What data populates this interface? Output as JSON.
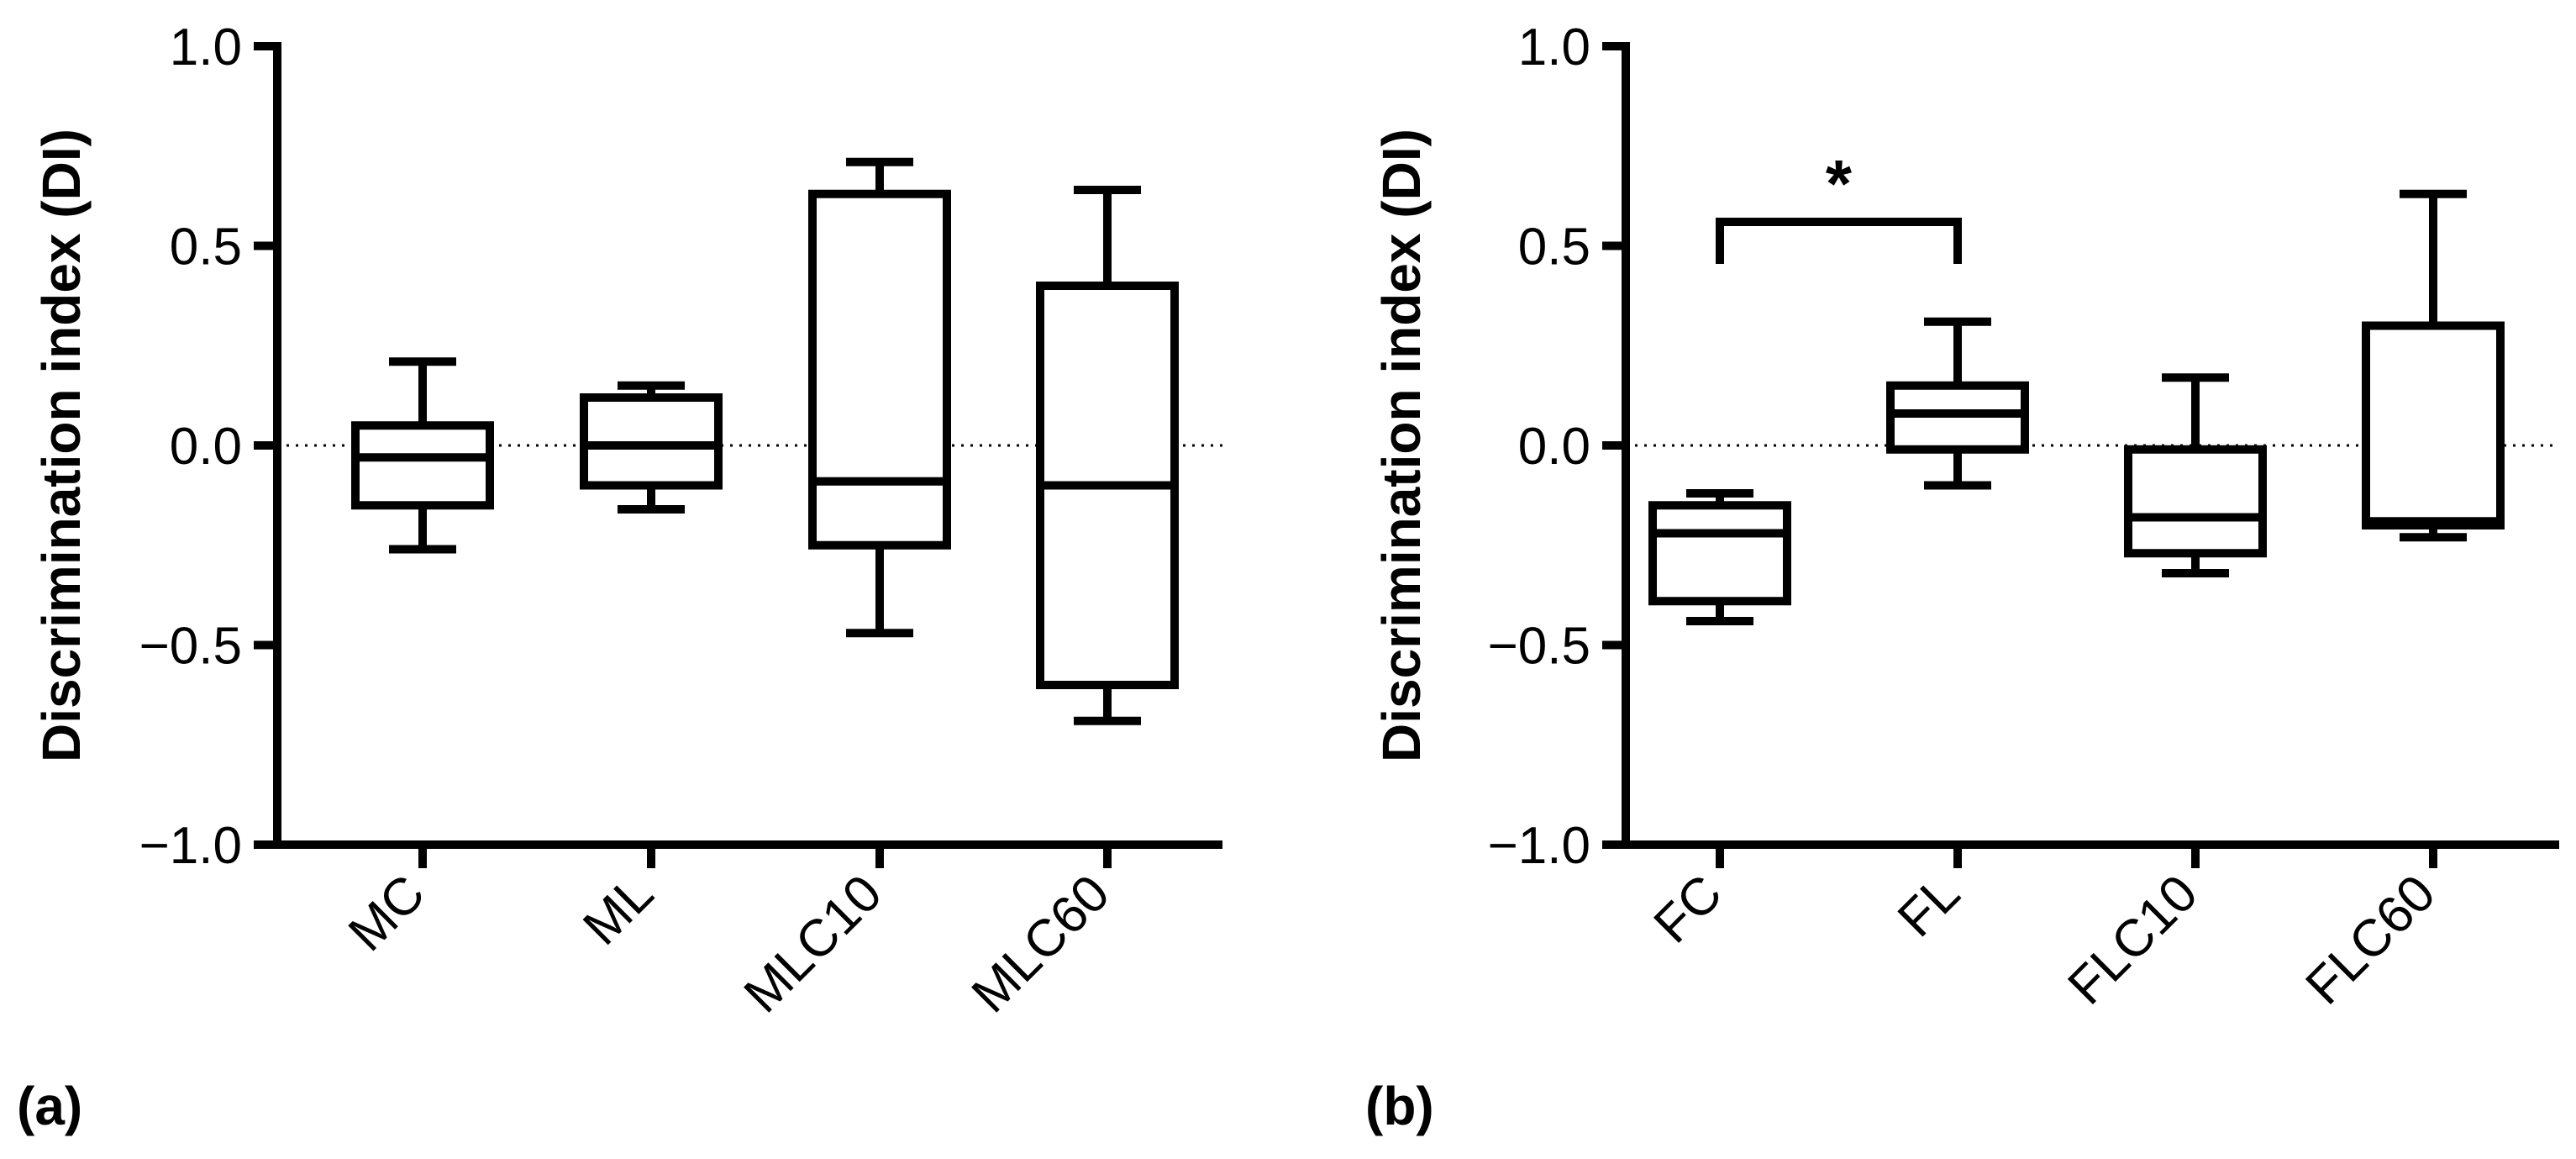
{
  "chart_data": [
    {
      "type": "box",
      "panel_label": "(a)",
      "ylabel": "Discrimination index (DI)",
      "ylim": [
        -1.0,
        1.0
      ],
      "yticks": [
        "1.0",
        "0.5",
        "0.0",
        "-0.5",
        "-1.0"
      ],
      "ytick_values": [
        1.0,
        0.5,
        0.0,
        -0.5,
        -1.0
      ],
      "reference_line": 0.0,
      "categories": [
        "MC",
        "ML",
        "MLC10",
        "MLC60"
      ],
      "boxes": [
        {
          "min": -0.26,
          "q1": -0.15,
          "median": -0.03,
          "q3": 0.05,
          "max": 0.21
        },
        {
          "min": -0.16,
          "q1": -0.1,
          "median": 0.0,
          "q3": 0.12,
          "max": 0.15
        },
        {
          "min": -0.47,
          "q1": -0.25,
          "median": -0.09,
          "q3": 0.63,
          "max": 0.71
        },
        {
          "min": -0.69,
          "q1": -0.6,
          "median": -0.1,
          "q3": 0.4,
          "max": 0.64
        }
      ]
    },
    {
      "type": "box",
      "panel_label": "(b)",
      "ylabel": "Discrimination index (DI)",
      "ylim": [
        -1.0,
        1.0
      ],
      "yticks": [
        "1.0",
        "0.5",
        "0.0",
        "-0.5",
        "-1.0"
      ],
      "ytick_values": [
        1.0,
        0.5,
        0.0,
        -0.5,
        -1.0
      ],
      "reference_line": 0.0,
      "categories": [
        "FC",
        "FL",
        "FLC10",
        "FLC60"
      ],
      "boxes": [
        {
          "min": -0.44,
          "q1": -0.39,
          "median": -0.22,
          "q3": -0.15,
          "max": -0.12
        },
        {
          "min": -0.1,
          "q1": -0.01,
          "median": 0.08,
          "q3": 0.15,
          "max": 0.31
        },
        {
          "min": -0.32,
          "q1": -0.27,
          "median": -0.18,
          "q3": -0.01,
          "max": 0.17
        },
        {
          "min": -0.23,
          "q1": -0.2,
          "median": -0.19,
          "q3": 0.3,
          "max": 0.63
        }
      ],
      "significance": {
        "from": "FC",
        "to": "FL",
        "label": "*",
        "y": 0.56
      }
    }
  ]
}
